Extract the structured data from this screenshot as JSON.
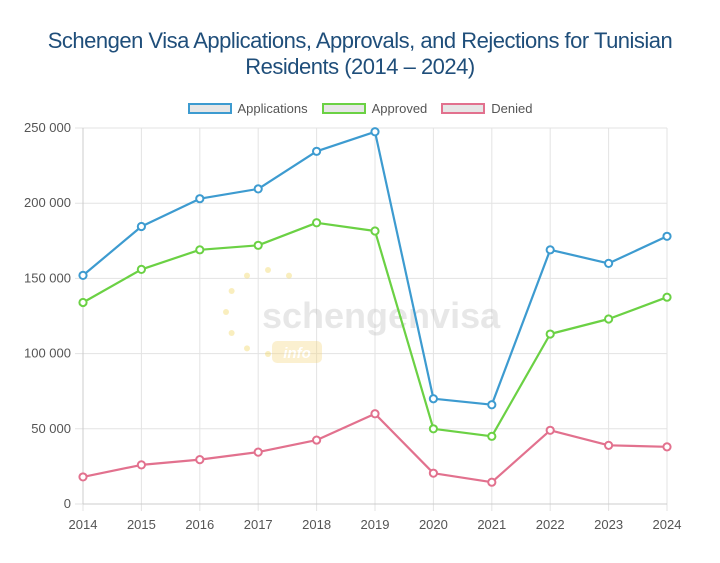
{
  "chart_data": {
    "type": "line",
    "title": "Schengen Visa Applications, Approvals, and Rejections for Tunisian Residents (2014 – 2024)",
    "x": [
      "2014",
      "2015",
      "2016",
      "2017",
      "2018",
      "2019",
      "2020",
      "2021",
      "2022",
      "2023",
      "2024"
    ],
    "ylim": [
      0,
      250000
    ],
    "yticks": [
      0,
      50000,
      100000,
      150000,
      200000,
      250000
    ],
    "ytick_labels": [
      "0",
      "50 000",
      "100 000",
      "150 000",
      "200 000",
      "250 000"
    ],
    "grid": true,
    "legend_position": "top",
    "series": [
      {
        "name": "Applications",
        "color": "#3d9bd0",
        "values": [
          152000,
          184500,
          203000,
          209500,
          234500,
          247500,
          70000,
          66000,
          169000,
          160000,
          178000
        ]
      },
      {
        "name": "Approved",
        "color": "#6bd144",
        "values": [
          134000,
          156000,
          169000,
          172000,
          187000,
          181500,
          50000,
          45000,
          113000,
          123000,
          137500
        ]
      },
      {
        "name": "Denied",
        "color": "#e2718e",
        "values": [
          18000,
          26000,
          29500,
          34500,
          42500,
          60000,
          20500,
          14500,
          49000,
          39000,
          38000
        ]
      }
    ]
  },
  "watermark": {
    "main": "schengenvisa",
    "sub": "info"
  }
}
